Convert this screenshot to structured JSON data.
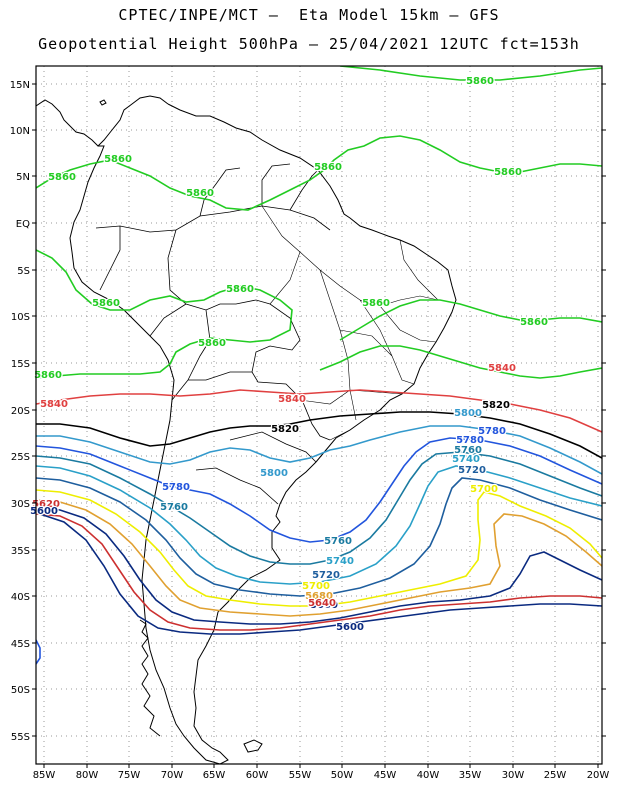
{
  "title_line1": "CPTEC/INPE/MCT –  Eta Model 15km – GFS",
  "title_line2": "Geopotential Height 500hPa – 25/04/2021 12UTC fct=153h",
  "lat_labels": [
    "15N",
    "10N",
    "5N",
    "EQ",
    "5S",
    "10S",
    "15S",
    "20S",
    "25S",
    "30S",
    "35S",
    "40S",
    "45S",
    "50S",
    "55S"
  ],
  "lon_labels": [
    "85W",
    "80W",
    "75W",
    "70W",
    "65W",
    "60W",
    "55W",
    "50W",
    "45W",
    "40W",
    "35W",
    "30W",
    "25W",
    "20W"
  ],
  "contour_colors": {
    "5860": "#22cc22",
    "5840": "#e04040",
    "5820": "#000000",
    "5800": "#3399cc",
    "5780": "#2255dd",
    "5760": "#1a7aa0",
    "5740": "#2aa0c8",
    "5720": "#1e5e9e",
    "5700": "#eeee00",
    "5680": "#e0a030",
    "5660": "#0a2a80",
    "5640": "#cc3030"
  },
  "contour_labels": [
    {
      "text": "5860",
      "color": "5860"
    },
    {
      "text": "5860",
      "color": "5860"
    },
    {
      "text": "5860",
      "color": "5860"
    },
    {
      "text": "5860",
      "color": "5860"
    },
    {
      "text": "5860",
      "color": "5860"
    },
    {
      "text": "5860",
      "color": "5860"
    },
    {
      "text": "5860",
      "color": "5860"
    },
    {
      "text": "5860",
      "color": "5860"
    },
    {
      "text": "5860",
      "color": "5860"
    },
    {
      "text": "5860",
      "color": "5860"
    },
    {
      "text": "5860",
      "color": "5860"
    },
    {
      "text": "5860",
      "color": "5860"
    },
    {
      "text": "5840",
      "color": "5840"
    },
    {
      "text": "5840",
      "color": "5840"
    },
    {
      "text": "5840",
      "color": "5840"
    },
    {
      "text": "5820",
      "color": "5820"
    },
    {
      "text": "5820",
      "color": "5820"
    },
    {
      "text": "5800",
      "color": "5800"
    },
    {
      "text": "5800",
      "color": "5800"
    },
    {
      "text": "5780",
      "color": "5780"
    },
    {
      "text": "5780",
      "color": "5780"
    },
    {
      "text": "5780",
      "color": "5780"
    },
    {
      "text": "5760",
      "color": "5760"
    },
    {
      "text": "5760",
      "color": "5760"
    },
    {
      "text": "5760",
      "color": "5760"
    },
    {
      "text": "5740",
      "color": "5740"
    },
    {
      "text": "5740",
      "color": "5740"
    },
    {
      "text": "5720",
      "color": "5720"
    },
    {
      "text": "5720",
      "color": "5720"
    },
    {
      "text": "5700",
      "color": "5700"
    },
    {
      "text": "5700",
      "color": "5700"
    },
    {
      "text": "5680",
      "color": "5680"
    },
    {
      "text": "5660",
      "color": "5660"
    },
    {
      "text": "5640",
      "color": "5640"
    },
    {
      "text": "5620",
      "color": "5640"
    },
    {
      "text": "5600",
      "color": "5660"
    },
    {
      "text": "5600",
      "color": "5660"
    }
  ]
}
